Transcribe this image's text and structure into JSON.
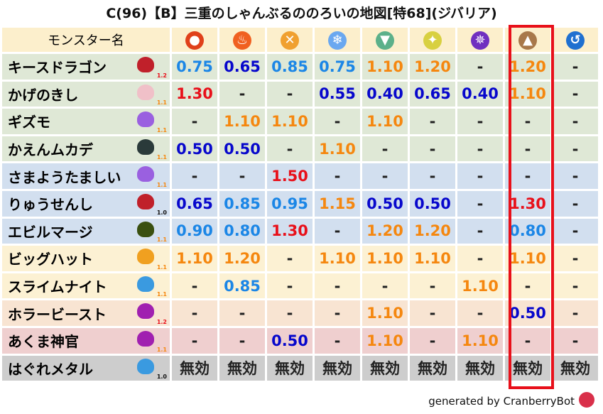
{
  "title": "C(96)【B】三重のしゃんぶるののろいの地図[特68](ジバリア)",
  "header": {
    "name_label": "モンスター名",
    "elements": [
      {
        "icon": "fireball-icon",
        "color": "#e0401a",
        "glyph": "●"
      },
      {
        "icon": "flame-icon",
        "color": "#f06020",
        "glyph": "♨"
      },
      {
        "icon": "explosion-icon",
        "color": "#f0a030",
        "glyph": "✕"
      },
      {
        "icon": "ice-icon",
        "color": "#6aa8f0",
        "glyph": "❄"
      },
      {
        "icon": "wind-icon",
        "color": "#5cb08a",
        "glyph": "▼"
      },
      {
        "icon": "light-icon",
        "color": "#d8d040",
        "glyph": "✦"
      },
      {
        "icon": "dark-icon",
        "color": "#7030c0",
        "glyph": "✵"
      },
      {
        "icon": "earth-icon",
        "color": "#a8784a",
        "glyph": "▲"
      },
      {
        "icon": "water-icon",
        "color": "#2070d0",
        "glyph": "↺"
      }
    ]
  },
  "highlight_column": 8,
  "rows": [
    {
      "name": "キースドラゴン",
      "icon": "dragon-icon",
      "icon_color": "#c0202a",
      "level": "1.2",
      "level_color": "#e8101a",
      "group": "g",
      "values": [
        "0.75",
        "0.65",
        "0.85",
        "0.75",
        "1.10",
        "1.20",
        "-",
        "1.20",
        "-"
      ]
    },
    {
      "name": "かげのきし",
      "icon": "skull-icon",
      "icon_color": "#f0c0c8",
      "level": "1.1",
      "level_color": "#f5870f",
      "group": "g",
      "values": [
        "1.30",
        "-",
        "-",
        "0.55",
        "0.40",
        "0.65",
        "0.40",
        "1.10",
        "-"
      ]
    },
    {
      "name": "ギズモ",
      "icon": "ghost-cloud-icon",
      "icon_color": "#9a60e0",
      "level": "1.1",
      "level_color": "#f5870f",
      "group": "g",
      "values": [
        "-",
        "1.10",
        "1.10",
        "-",
        "1.10",
        "-",
        "-",
        "-",
        "-"
      ]
    },
    {
      "name": "かえんムカデ",
      "icon": "insect-icon",
      "icon_color": "#2a3a3a",
      "level": "1.1",
      "level_color": "#f5870f",
      "group": "g",
      "values": [
        "0.50",
        "0.50",
        "-",
        "1.10",
        "-",
        "-",
        "-",
        "-",
        "-"
      ]
    },
    {
      "name": "さまようたましい",
      "icon": "ghost-cloud-icon",
      "icon_color": "#9a60e0",
      "level": "1.1",
      "level_color": "#f5870f",
      "group": "b",
      "values": [
        "-",
        "-",
        "1.50",
        "-",
        "-",
        "-",
        "-",
        "-",
        "-"
      ]
    },
    {
      "name": "りゅうせんし",
      "icon": "dragon-icon",
      "icon_color": "#c0202a",
      "level": "1.0",
      "level_color": "#111111",
      "group": "b",
      "values": [
        "0.65",
        "0.85",
        "0.95",
        "1.15",
        "0.50",
        "0.50",
        "-",
        "1.30",
        "-"
      ]
    },
    {
      "name": "エビルマージ",
      "icon": "slime-hood-icon",
      "icon_color": "#3a5010",
      "level": "1.1",
      "level_color": "#f5870f",
      "group": "b",
      "values": [
        "0.90",
        "0.80",
        "1.30",
        "-",
        "1.20",
        "1.20",
        "-",
        "0.80",
        "-"
      ]
    },
    {
      "name": "ビッグハット",
      "icon": "paw-icon",
      "icon_color": "#f0a020",
      "level": "1.1",
      "level_color": "#f5870f",
      "group": "y",
      "values": [
        "1.10",
        "1.20",
        "-",
        "1.10",
        "1.10",
        "1.10",
        "-",
        "1.10",
        "-"
      ]
    },
    {
      "name": "スライムナイト",
      "icon": "slime-icon",
      "icon_color": "#3a9ae0",
      "level": "1.1",
      "level_color": "#f5870f",
      "group": "y",
      "values": [
        "-",
        "0.85",
        "-",
        "-",
        "-",
        "-",
        "1.10",
        "-",
        "-"
      ]
    },
    {
      "name": "ホラービースト",
      "icon": "demon-icon",
      "icon_color": "#a020b0",
      "level": "1.2",
      "level_color": "#e8101a",
      "group": "p",
      "values": [
        "-",
        "-",
        "-",
        "-",
        "1.10",
        "-",
        "-",
        "0.50",
        "-"
      ]
    },
    {
      "name": "あくま神官",
      "icon": "demon-icon",
      "icon_color": "#a020b0",
      "level": "1.1",
      "level_color": "#f5870f",
      "group": "k",
      "values": [
        "-",
        "-",
        "0.50",
        "-",
        "1.10",
        "-",
        "1.10",
        "-",
        "-"
      ]
    },
    {
      "name": "はぐれメタル",
      "icon": "slime-icon",
      "icon_color": "#3a9ae0",
      "level": "1.0",
      "level_color": "#111111",
      "group": "s",
      "values": [
        "無効",
        "無効",
        "無効",
        "無効",
        "無効",
        "無効",
        "無効",
        "無効",
        "無効"
      ]
    }
  ],
  "footer": {
    "text": "generated by CranberryBot",
    "icon": "cranberry-bot-icon"
  },
  "value_colors": {
    "high": "#e8101a",
    "mid_high": "#f5870f",
    "mid_low": "#1b86e6",
    "low": "#0707cc"
  }
}
